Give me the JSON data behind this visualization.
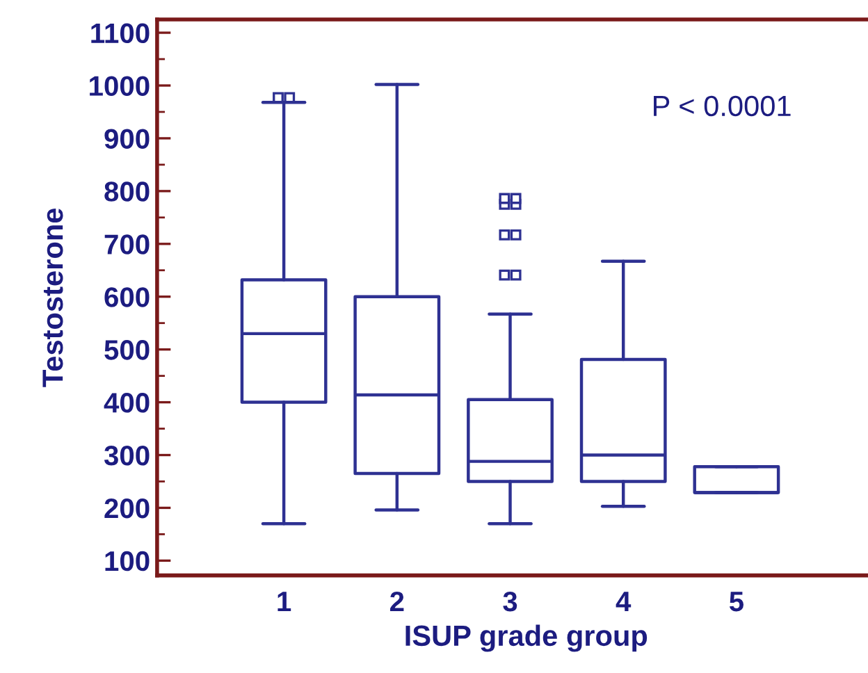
{
  "chart_data": {
    "type": "box",
    "xlabel": "ISUP grade group",
    "ylabel": "Testosterone",
    "categories": [
      "1",
      "2",
      "3",
      "4",
      "5"
    ],
    "boxes": [
      {
        "low": 170,
        "q1": 400,
        "median": 530,
        "q3": 632,
        "high": 968,
        "outliers": [
          977,
          977
        ]
      },
      {
        "low": 196,
        "q1": 265,
        "median": 414,
        "q3": 600,
        "high": 1002
      },
      {
        "low": 170,
        "q1": 250,
        "median": 288,
        "q3": 405,
        "high": 567,
        "outliers": [
          641,
          641,
          717,
          717,
          775,
          775,
          786,
          786
        ]
      },
      {
        "low": 203,
        "q1": 250,
        "median": 300,
        "q3": 481,
        "high": 667
      },
      {
        "low": 229,
        "q1": 229,
        "median": 229,
        "q3": 278,
        "high": 278
      }
    ],
    "color": "#2e3192",
    "ylim": [
      72,
      1125
    ],
    "yticks": [
      100,
      200,
      300,
      400,
      500,
      600,
      700,
      800,
      900,
      1000,
      1100
    ],
    "grid": false,
    "marker": "square",
    "annotations": [
      "P < 0.0001"
    ]
  }
}
